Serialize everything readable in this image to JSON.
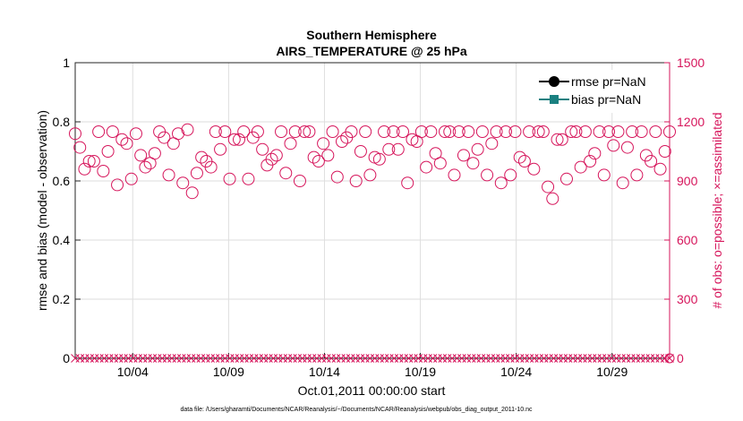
{
  "chart_data": {
    "type": "scatter",
    "title": "Southern Hemisphere",
    "subtitle": "AIRS_TEMPERATURE @ 25 hPa",
    "xlabel": "Oct.01,2011 00:00:00 start",
    "ylabel_left": "rmse and bias (model - observation)",
    "ylabel_right": "# of obs: o=possible; ×=assimilated",
    "footer": "data file: /Users/gharamti/Documents/NCAR/Reanalysis/~/Documents/NCAR/Reanalysis/webpub/obs_diag_output_2011-10.nc",
    "x_ticks": [
      "10/04",
      "10/09",
      "10/14",
      "10/19",
      "10/24",
      "10/29"
    ],
    "x_tick_days": [
      4,
      9,
      14,
      19,
      24,
      29
    ],
    "xlim": [
      1,
      32
    ],
    "ylim_left": [
      0,
      1
    ],
    "yticks_left": [
      "0",
      "0.2",
      "0.4",
      "0.6",
      "0.8",
      "1"
    ],
    "ylim_right": [
      0,
      1500
    ],
    "yticks_right": [
      "0",
      "300",
      "600",
      "900",
      "1200",
      "1500"
    ],
    "legend": {
      "placement": "top-right",
      "entries": [
        {
          "label": "rmse pr=NaN",
          "color": "#000000",
          "marker": "circle"
        },
        {
          "label": "bias pr=NaN",
          "color": "#1a8080",
          "marker": "square"
        }
      ]
    },
    "obs_color": "#d6155b",
    "grid": true,
    "series": [
      {
        "name": "possible",
        "axis": "right",
        "marker": "circle",
        "values": [
          1140,
          1070,
          960,
          1000,
          1000,
          1150,
          950,
          1050,
          1150,
          880,
          1110,
          1090,
          910,
          1140,
          1030,
          970,
          990,
          1040,
          1150,
          1120,
          930,
          1090,
          1140,
          890,
          1160,
          840,
          940,
          1020,
          1000,
          970,
          1150,
          1060,
          1150,
          910,
          1110,
          1110,
          1150,
          910,
          1120,
          1150,
          1060,
          980,
          1010,
          1030,
          1150,
          940,
          1090,
          1150,
          900,
          1150,
          1150,
          1020,
          1000,
          1090,
          1030,
          1150,
          920,
          1100,
          1120,
          1150,
          900,
          1050,
          1150,
          930,
          1020,
          1010,
          1150,
          1060,
          1150,
          1060,
          1150,
          890,
          1110,
          1100,
          1150,
          970,
          1150,
          1040,
          990,
          1150,
          1150,
          930,
          1150,
          1030,
          1150,
          990,
          1060,
          1150,
          930,
          1090,
          1150,
          890,
          1150,
          930,
          1150,
          1020,
          1000,
          1150,
          960,
          1150,
          1150,
          870,
          810,
          1110,
          1110,
          910,
          1150,
          1150,
          970,
          1150,
          1000,
          1040,
          1150,
          930,
          1150,
          1080,
          1150,
          890,
          1070,
          1150,
          930,
          1150,
          1030,
          1000,
          1150,
          960,
          1050,
          1150
        ]
      },
      {
        "name": "assimilated",
        "axis": "right",
        "marker": "x",
        "constant": 0,
        "count": 124
      }
    ]
  }
}
